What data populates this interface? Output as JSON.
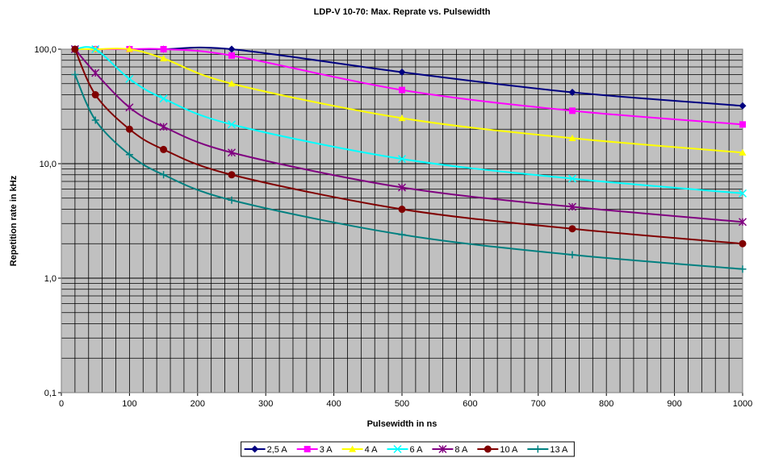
{
  "chart_data": {
    "type": "line",
    "title": "LDP-V 10-70: Max. Reprate vs. Pulsewidth",
    "x_label": "Pulsewidth in ns",
    "y_label": "Repetition rate in kHz",
    "x": [
      20,
      50,
      100,
      150,
      250,
      500,
      750,
      1000
    ],
    "xlim": [
      0,
      1000
    ],
    "xticks": [
      0,
      100,
      200,
      300,
      400,
      500,
      600,
      700,
      800,
      900,
      1000
    ],
    "ylim": [
      0.1,
      100
    ],
    "yticks": [
      {
        "value": 0.1,
        "label": "0,1"
      },
      {
        "value": 1,
        "label": "1,0"
      },
      {
        "value": 10,
        "label": "10,0"
      },
      {
        "value": 100,
        "label": "100,0"
      }
    ],
    "y_scale": "log",
    "grid": true,
    "legend": "bottom",
    "series": [
      {
        "name": "2,5 A",
        "color": "#000080",
        "marker": "diamond",
        "values": [
          100,
          100,
          100,
          100,
          100,
          63,
          42,
          32
        ]
      },
      {
        "name": "3 A",
        "color": "#ff00ff",
        "marker": "square",
        "values": [
          100,
          100,
          100,
          100,
          88,
          44,
          29,
          22
        ]
      },
      {
        "name": "4 A",
        "color": "#ffff00",
        "marker": "triangle",
        "values": [
          100,
          100,
          100,
          83,
          50,
          25,
          16.7,
          12.5
        ]
      },
      {
        "name": "6 A",
        "color": "#00ffff",
        "marker": "x",
        "values": [
          100,
          100,
          55,
          37,
          22,
          11,
          7.4,
          5.5
        ]
      },
      {
        "name": "8 A",
        "color": "#800080",
        "marker": "star",
        "values": [
          100,
          62,
          31,
          21,
          12.5,
          6.2,
          4.2,
          3.1
        ]
      },
      {
        "name": "10 A",
        "color": "#800000",
        "marker": "circle",
        "values": [
          100,
          40,
          20,
          13.3,
          8,
          4,
          2.7,
          2
        ]
      },
      {
        "name": "13 A",
        "color": "#008080",
        "marker": "plus",
        "values": [
          60,
          24,
          12,
          8,
          4.8,
          2.4,
          1.6,
          1.2
        ]
      }
    ]
  }
}
